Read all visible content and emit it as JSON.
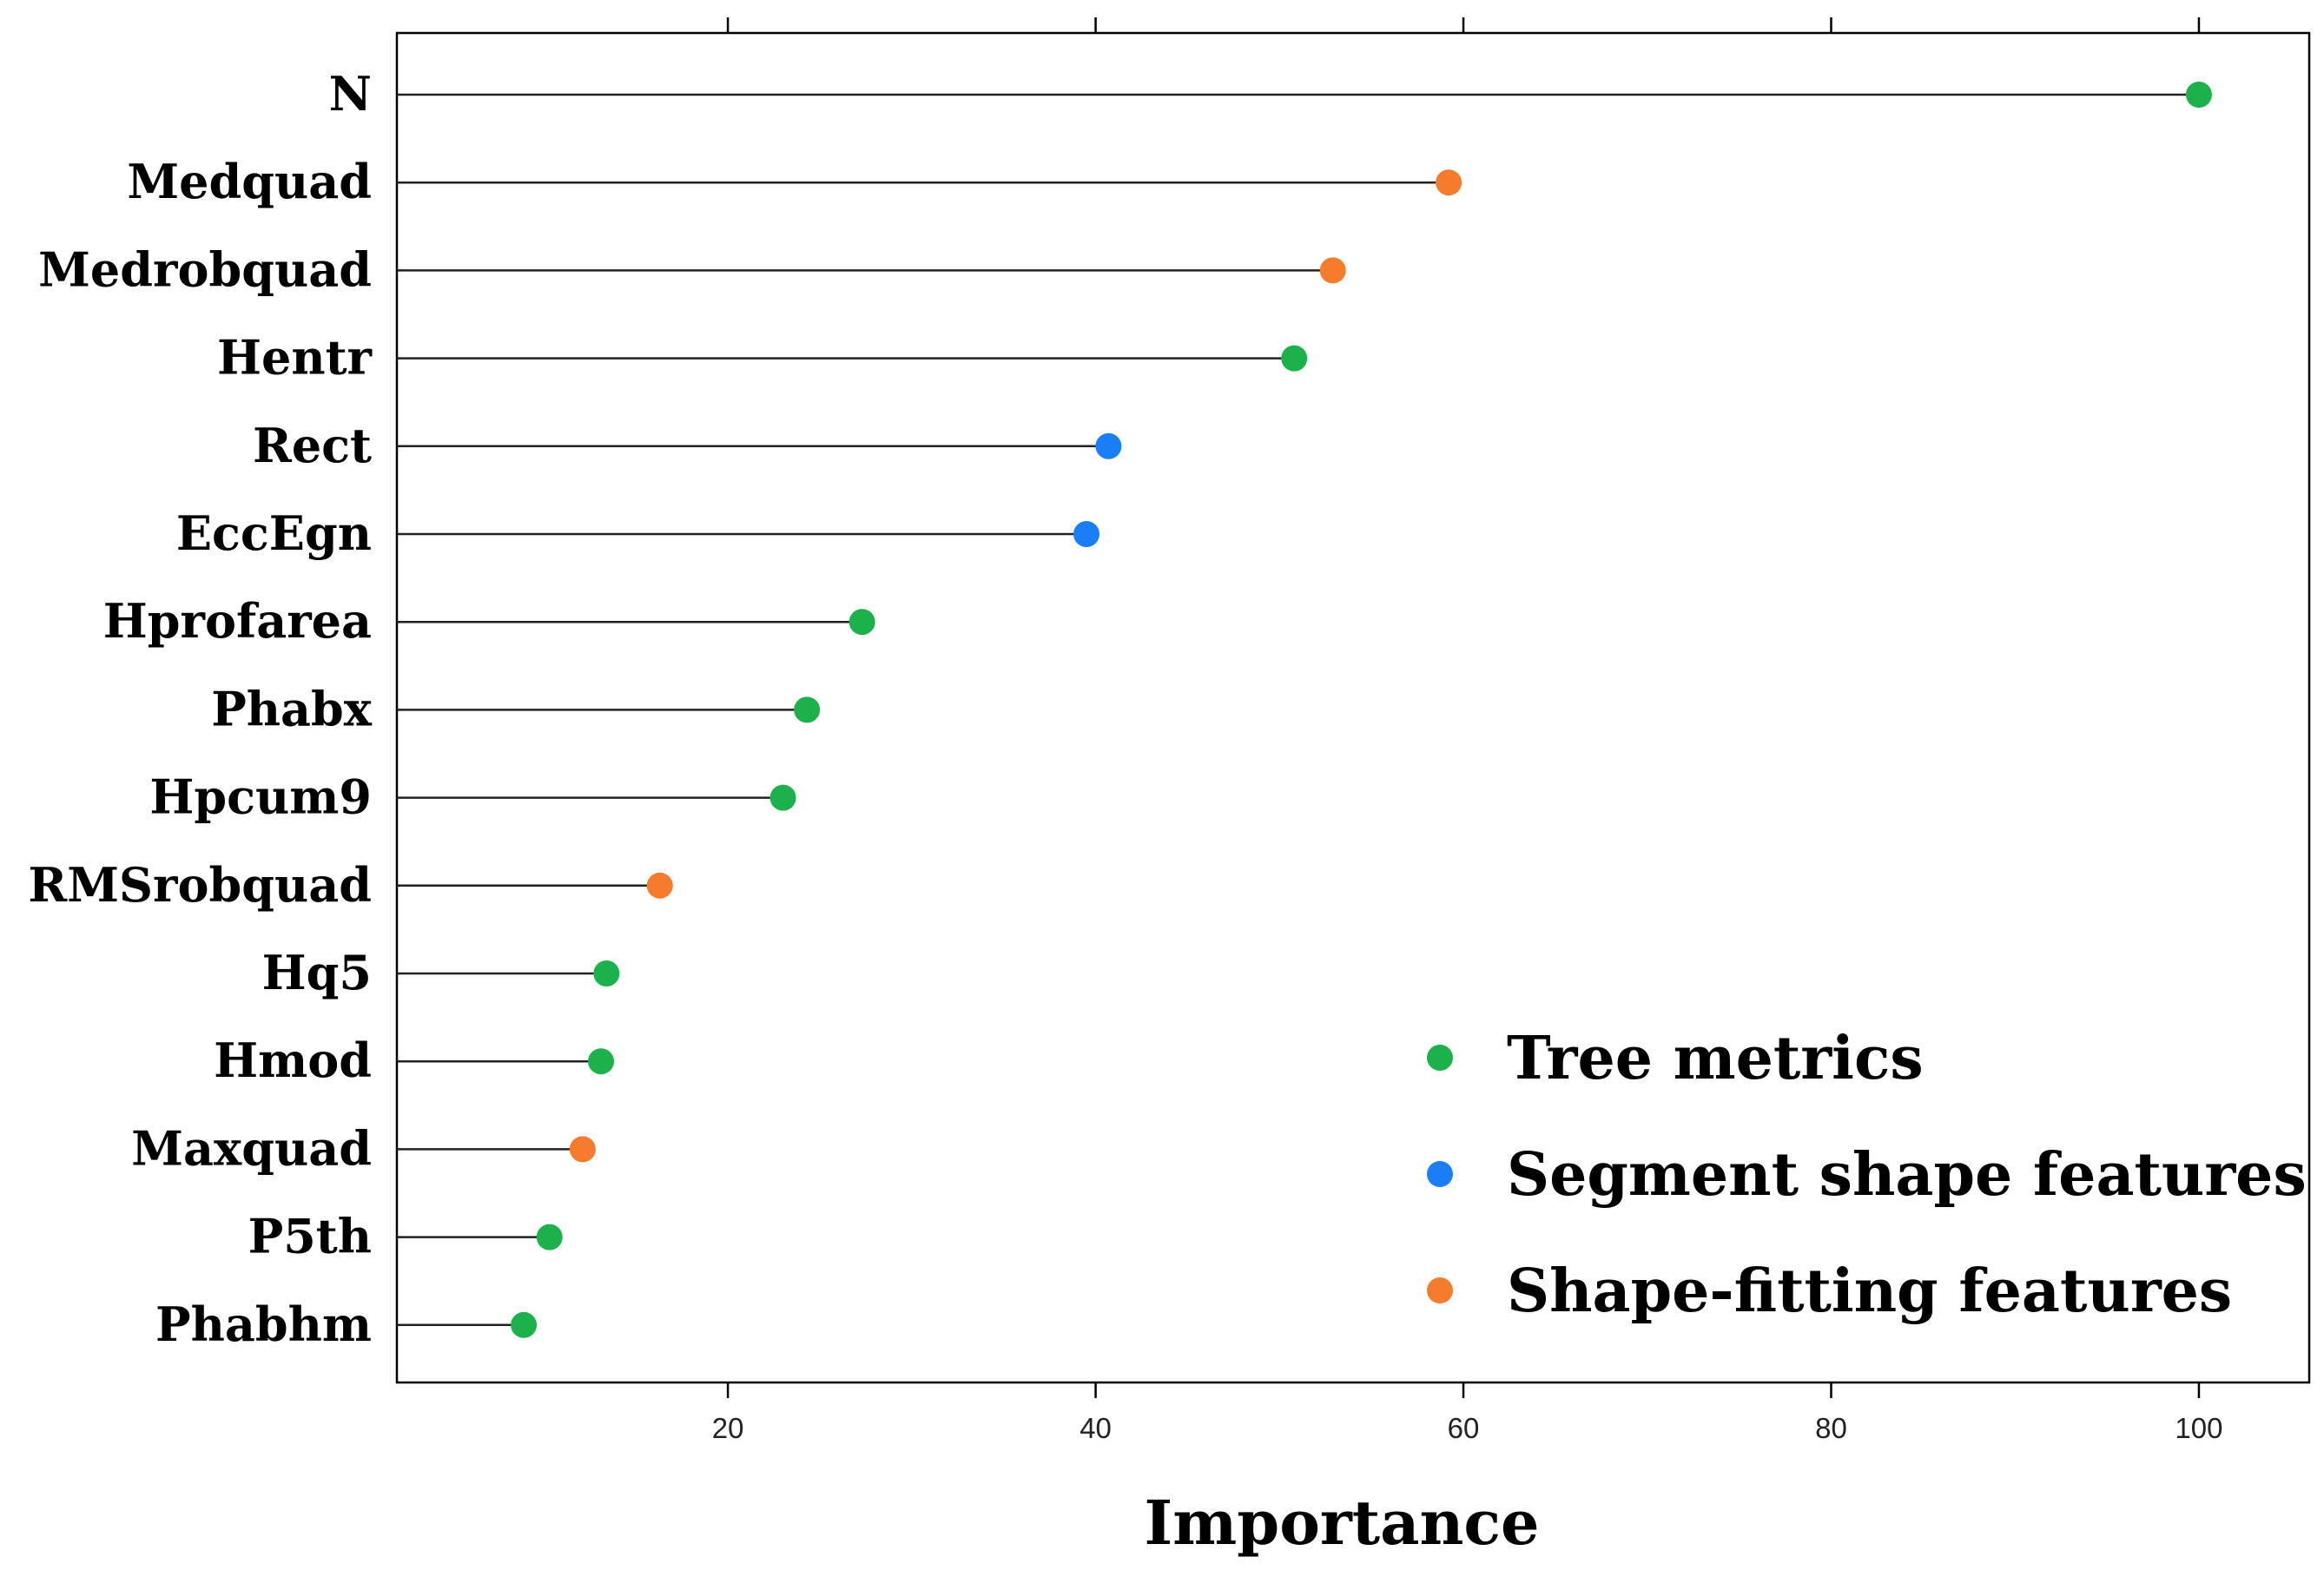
{
  "chart_data": {
    "type": "dot",
    "title": "",
    "xlabel": "Importance",
    "ylabel": "",
    "xlim": [
      2,
      106
    ],
    "xticks": [
      20,
      40,
      60,
      80,
      100
    ],
    "grid": false,
    "legend_position": "bottom-right",
    "categories": [
      "N",
      "Medquad",
      "Medrobquad",
      "Hentr",
      "Rect",
      "EccEgn",
      "Hprofarea",
      "Phabx",
      "Hpcum9",
      "RMSrobquad",
      "Hq5",
      "Hmod",
      "Maxquad",
      "P5th",
      "Phabhm"
    ],
    "values": [
      100,
      59.2,
      52.9,
      50.8,
      40.7,
      39.5,
      27.3,
      24.3,
      23.0,
      16.3,
      13.4,
      13.1,
      12.1,
      10.3,
      8.9
    ],
    "groups": [
      "Tree metrics",
      "Shape-fitting features",
      "Shape-fitting features",
      "Tree metrics",
      "Segment shape features",
      "Segment shape features",
      "Tree metrics",
      "Tree metrics",
      "Tree metrics",
      "Shape-fitting features",
      "Tree metrics",
      "Tree metrics",
      "Shape-fitting features",
      "Tree metrics",
      "Tree metrics"
    ],
    "legend": [
      {
        "name": "Tree metrics",
        "color": "#1db14b"
      },
      {
        "name": "Segment shape features",
        "color": "#1a7ff7"
      },
      {
        "name": "Shape-fitting features",
        "color": "#f57c2c"
      }
    ]
  }
}
